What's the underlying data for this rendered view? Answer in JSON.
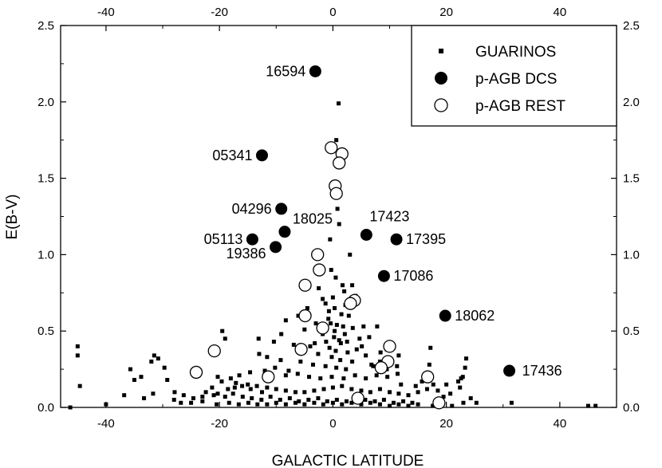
{
  "chart_data": {
    "type": "scatter",
    "xlabel": "GALACTIC LATITUDE",
    "ylabel": "E(B-V)",
    "xlim": [
      -48,
      50
    ],
    "ylim": [
      0,
      2.5
    ],
    "x_ticks": [
      -40,
      -20,
      0,
      20,
      40
    ],
    "y_ticks": [
      0.0,
      0.5,
      1.0,
      1.5,
      2.0,
      2.5
    ],
    "x_tick_labels": [
      "-40",
      "-20",
      "0",
      "20",
      "40"
    ],
    "y_tick_labels": [
      "0.0",
      "0.5",
      "1.0",
      "1.5",
      "2.0",
      "2.5"
    ],
    "grid": false,
    "legend_position": "top-right",
    "series": [
      {
        "name": "GUARINOS",
        "marker": "small-filled-square",
        "points": [
          [
            1.0,
            1.99
          ],
          [
            0.6,
            1.75
          ],
          [
            0.8,
            1.62
          ],
          [
            0.5,
            1.47
          ],
          [
            0.8,
            1.3
          ],
          [
            1.1,
            1.2
          ],
          [
            -0.5,
            1.1
          ],
          [
            3.0,
            1.0
          ],
          [
            -0.3,
            0.9
          ],
          [
            0.5,
            0.85
          ],
          [
            1.7,
            0.8
          ],
          [
            3.4,
            0.8
          ],
          [
            -2.5,
            0.78
          ],
          [
            4.0,
            0.73
          ],
          [
            2.0,
            0.76
          ],
          [
            0.0,
            0.72
          ],
          [
            -1.3,
            0.68
          ],
          [
            3.6,
            0.7
          ],
          [
            -0.7,
            0.63
          ],
          [
            1.5,
            0.61
          ],
          [
            2.8,
            0.6
          ],
          [
            -4.5,
            0.65
          ],
          [
            -6.1,
            0.6
          ],
          [
            -8.3,
            0.57
          ],
          [
            -3.0,
            0.55
          ],
          [
            -0.4,
            0.55
          ],
          [
            0.7,
            0.54
          ],
          [
            1.8,
            0.53
          ],
          [
            3.5,
            0.52
          ],
          [
            5.4,
            0.53
          ],
          [
            7.8,
            0.53
          ],
          [
            -5.0,
            0.51
          ],
          [
            -9.1,
            0.48
          ],
          [
            -1.8,
            0.48
          ],
          [
            0.2,
            0.46
          ],
          [
            1.1,
            0.44
          ],
          [
            2.5,
            0.43
          ],
          [
            4.7,
            0.45
          ],
          [
            6.4,
            0.46
          ],
          [
            -19.5,
            0.5
          ],
          [
            -19.0,
            0.45
          ],
          [
            -13.1,
            0.45
          ],
          [
            -10.4,
            0.43
          ],
          [
            -6.9,
            0.41
          ],
          [
            -4.0,
            0.4
          ],
          [
            -0.6,
            0.39
          ],
          [
            0.5,
            0.37
          ],
          [
            2.6,
            0.36
          ],
          [
            4.2,
            0.38
          ],
          [
            5.8,
            0.34
          ],
          [
            8.4,
            0.36
          ],
          [
            11.6,
            0.34
          ],
          [
            -2.6,
            0.35
          ],
          [
            -0.2,
            0.33
          ],
          [
            1.3,
            0.31
          ],
          [
            3.4,
            0.3
          ],
          [
            -11.6,
            0.33
          ],
          [
            -9.2,
            0.31
          ],
          [
            -5.7,
            0.3
          ],
          [
            -3.5,
            0.28
          ],
          [
            -1.3,
            0.27
          ],
          [
            0.6,
            0.26
          ],
          [
            2.3,
            0.25
          ],
          [
            7.1,
            0.27
          ],
          [
            9.5,
            0.25
          ],
          [
            -7.8,
            0.24
          ],
          [
            -14.6,
            0.23
          ],
          [
            -16.5,
            0.21
          ],
          [
            -18.0,
            0.19
          ],
          [
            -19.6,
            0.17
          ],
          [
            -17.1,
            0.16
          ],
          [
            -15.0,
            0.15
          ],
          [
            -13.4,
            0.14
          ],
          [
            -11.6,
            0.13
          ],
          [
            -10.0,
            0.12
          ],
          [
            -8.3,
            0.11
          ],
          [
            -6.6,
            0.1
          ],
          [
            -5.0,
            0.1
          ],
          [
            -3.3,
            0.11
          ],
          [
            -1.6,
            0.12
          ],
          [
            0.0,
            0.13
          ],
          [
            1.6,
            0.14
          ],
          [
            3.3,
            0.12
          ],
          [
            5.0,
            0.11
          ],
          [
            6.6,
            0.1
          ],
          [
            8.3,
            0.12
          ],
          [
            10.0,
            0.1
          ],
          [
            11.6,
            0.09
          ],
          [
            13.3,
            0.08
          ],
          [
            15.0,
            0.1
          ],
          [
            16.6,
            0.12
          ],
          [
            -22.4,
            0.1
          ],
          [
            -21.0,
            0.08
          ],
          [
            -19.0,
            0.07
          ],
          [
            -17.6,
            0.09
          ],
          [
            -15.9,
            0.07
          ],
          [
            -14.3,
            0.06
          ],
          [
            -12.6,
            0.05
          ],
          [
            -11.0,
            0.07
          ],
          [
            -9.3,
            0.05
          ],
          [
            -7.6,
            0.06
          ],
          [
            -6.0,
            0.04
          ],
          [
            -4.3,
            0.05
          ],
          [
            -2.6,
            0.06
          ],
          [
            -1.0,
            0.04
          ],
          [
            0.7,
            0.05
          ],
          [
            2.4,
            0.04
          ],
          [
            4.0,
            0.06
          ],
          [
            5.7,
            0.05
          ],
          [
            7.4,
            0.04
          ],
          [
            9.0,
            0.05
          ],
          [
            10.7,
            0.03
          ],
          [
            12.4,
            0.04
          ],
          [
            14.0,
            0.03
          ],
          [
            -27.9,
            0.1
          ],
          [
            -26.3,
            0.08
          ],
          [
            -24.6,
            0.06
          ],
          [
            -23.0,
            0.04
          ],
          [
            -20.5,
            0.02
          ],
          [
            -18.3,
            0.03
          ],
          [
            -16.6,
            0.02
          ],
          [
            -14.9,
            0.03
          ],
          [
            -13.3,
            0.02
          ],
          [
            -11.6,
            0.02
          ],
          [
            -10.0,
            0.03
          ],
          [
            -8.3,
            0.02
          ],
          [
            -6.6,
            0.03
          ],
          [
            -5.0,
            0.02
          ],
          [
            -3.3,
            0.03
          ],
          [
            -1.7,
            0.02
          ],
          [
            0.0,
            0.03
          ],
          [
            1.6,
            0.02
          ],
          [
            3.3,
            0.03
          ],
          [
            5.0,
            0.02
          ],
          [
            6.6,
            0.03
          ],
          [
            8.3,
            0.02
          ],
          [
            10.0,
            0.01
          ],
          [
            11.6,
            0.02
          ],
          [
            13.3,
            0.01
          ],
          [
            15.0,
            0.02
          ],
          [
            17.6,
            0.01
          ],
          [
            19.3,
            0.02
          ],
          [
            21.0,
            0.01
          ],
          [
            23.0,
            0.03
          ],
          [
            -45.0,
            0.4
          ],
          [
            -45.0,
            0.34
          ],
          [
            -44.6,
            0.14
          ],
          [
            -35.7,
            0.25
          ],
          [
            -35.0,
            0.18
          ],
          [
            -33.8,
            0.2
          ],
          [
            -32.0,
            0.3
          ],
          [
            -31.5,
            0.34
          ],
          [
            -30.8,
            0.32
          ],
          [
            -29.7,
            0.26
          ],
          [
            -29.2,
            0.18
          ],
          [
            -31.7,
            0.09
          ],
          [
            -33.3,
            0.06
          ],
          [
            -36.8,
            0.08
          ],
          [
            -40.0,
            0.02
          ],
          [
            -46.3,
            0.0
          ],
          [
            -28.0,
            0.05
          ],
          [
            -26.8,
            0.03
          ],
          [
            -25.0,
            0.03
          ],
          [
            -23.0,
            0.07
          ],
          [
            -20.3,
            0.09
          ],
          [
            -21.3,
            0.13
          ],
          [
            -18.5,
            0.12
          ],
          [
            -17.3,
            0.13
          ],
          [
            -16.0,
            0.14
          ],
          [
            -14.5,
            0.12
          ],
          [
            -12.5,
            0.1
          ],
          [
            -20.3,
            0.2
          ],
          [
            -12.0,
            0.24
          ],
          [
            -10.2,
            0.26
          ],
          [
            -8.3,
            0.21
          ],
          [
            -6.2,
            0.22
          ],
          [
            -4.2,
            0.2
          ],
          [
            -2.2,
            0.19
          ],
          [
            -0.2,
            0.2
          ],
          [
            1.9,
            0.19
          ],
          [
            3.9,
            0.21
          ],
          [
            5.8,
            0.19
          ],
          [
            7.7,
            0.21
          ],
          [
            9.6,
            0.2
          ],
          [
            11.4,
            0.22
          ],
          [
            -13.0,
            0.35
          ],
          [
            -6.0,
            0.36
          ],
          [
            -3.2,
            0.42
          ],
          [
            -1.2,
            0.43
          ],
          [
            1.4,
            0.42
          ],
          [
            5.1,
            0.4
          ],
          [
            9.5,
            0.38
          ],
          [
            -0.8,
            0.58
          ],
          [
            -1.8,
            0.71
          ],
          [
            2.2,
            0.67
          ],
          [
            0.3,
            0.65
          ],
          [
            0.3,
            0.5
          ],
          [
            2.1,
            0.48
          ],
          [
            8.3,
            0.3
          ],
          [
            6.8,
            0.28
          ],
          [
            12.0,
            0.15
          ],
          [
            14.6,
            0.14
          ],
          [
            15.7,
            0.17
          ],
          [
            17.7,
            0.15
          ],
          [
            18.5,
            0.11
          ],
          [
            19.5,
            0.07
          ],
          [
            20.0,
            0.15
          ],
          [
            20.7,
            0.09
          ],
          [
            23.5,
            0.32
          ],
          [
            23.3,
            0.26
          ],
          [
            22.9,
            0.2
          ],
          [
            22.6,
            0.19
          ],
          [
            22.1,
            0.17
          ],
          [
            22.4,
            0.13
          ],
          [
            24.3,
            0.06
          ],
          [
            25.3,
            0.03
          ],
          [
            17.2,
            0.39
          ],
          [
            17.0,
            0.28
          ],
          [
            11.3,
            0.27
          ],
          [
            10.0,
            0.3
          ],
          [
            31.5,
            0.03
          ],
          [
            45.0,
            0.01
          ],
          [
            46.3,
            0.01
          ]
        ]
      },
      {
        "name": "p-AGB DCS",
        "marker": "filled-circle",
        "points": [
          [
            -3.1,
            2.2,
            "16594"
          ],
          [
            -12.5,
            1.65,
            "05341"
          ],
          [
            -9.1,
            1.3,
            "04296"
          ],
          [
            -8.5,
            1.15,
            "18025"
          ],
          [
            -14.2,
            1.1,
            "05113"
          ],
          [
            -10.1,
            1.05,
            "19386"
          ],
          [
            5.9,
            1.13,
            "17423"
          ],
          [
            11.2,
            1.1,
            "17395"
          ],
          [
            9.0,
            0.86,
            "17086"
          ],
          [
            19.8,
            0.6,
            "18062"
          ],
          [
            31.1,
            0.24,
            "17436"
          ]
        ]
      },
      {
        "name": "p-AGB REST",
        "marker": "open-circle",
        "points": [
          [
            -0.3,
            1.7
          ],
          [
            1.6,
            1.66
          ],
          [
            1.1,
            1.6
          ],
          [
            0.4,
            1.45
          ],
          [
            0.6,
            1.4
          ],
          [
            -2.7,
            1.0
          ],
          [
            -2.4,
            0.9
          ],
          [
            -4.9,
            0.8
          ],
          [
            3.8,
            0.7
          ],
          [
            3.1,
            0.68
          ],
          [
            -4.9,
            0.6
          ],
          [
            -1.8,
            0.52
          ],
          [
            10.0,
            0.4
          ],
          [
            -5.6,
            0.38
          ],
          [
            -20.9,
            0.37
          ],
          [
            9.7,
            0.3
          ],
          [
            8.5,
            0.26
          ],
          [
            -24.1,
            0.23
          ],
          [
            -11.4,
            0.2
          ],
          [
            16.7,
            0.2
          ],
          [
            4.4,
            0.06
          ],
          [
            18.7,
            0.03
          ]
        ]
      }
    ],
    "annotations": [
      "16594",
      "05341",
      "04296",
      "18025",
      "05113",
      "19386",
      "17423",
      "17395",
      "17086",
      "18062",
      "17436"
    ]
  }
}
